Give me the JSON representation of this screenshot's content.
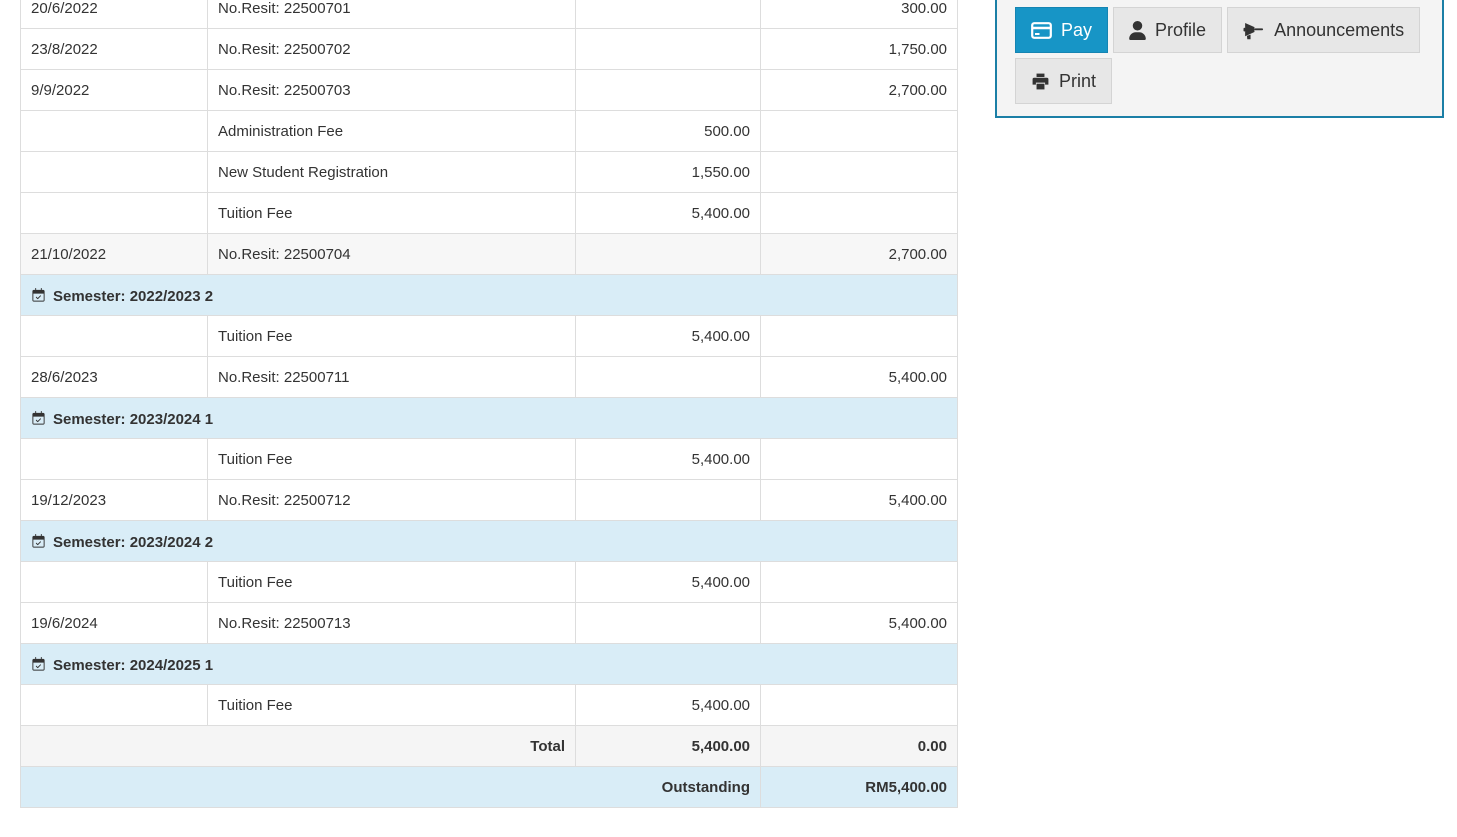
{
  "table": {
    "rows": [
      {
        "type": "entry",
        "date": "20/6/2022",
        "description": "No.Resit: 22500701",
        "debit": "",
        "credit": "300.00",
        "shaded": false
      },
      {
        "type": "entry",
        "date": "23/8/2022",
        "description": "No.Resit: 22500702",
        "debit": "",
        "credit": "1,750.00",
        "shaded": false
      },
      {
        "type": "entry",
        "date": "9/9/2022",
        "description": "No.Resit: 22500703",
        "debit": "",
        "credit": "2,700.00",
        "shaded": false
      },
      {
        "type": "entry",
        "date": "",
        "description": "Administration Fee",
        "debit": "500.00",
        "credit": "",
        "shaded": false
      },
      {
        "type": "entry",
        "date": "",
        "description": "New Student Registration",
        "debit": "1,550.00",
        "credit": "",
        "shaded": false
      },
      {
        "type": "entry",
        "date": "",
        "description": "Tuition Fee",
        "debit": "5,400.00",
        "credit": "",
        "shaded": false
      },
      {
        "type": "entry",
        "date": "21/10/2022",
        "description": "No.Resit: 22500704",
        "debit": "",
        "credit": "2,700.00",
        "shaded": true
      },
      {
        "type": "semester",
        "label": "Semester: 2022/2023 2"
      },
      {
        "type": "entry",
        "date": "",
        "description": "Tuition Fee",
        "debit": "5,400.00",
        "credit": "",
        "shaded": false
      },
      {
        "type": "entry",
        "date": "28/6/2023",
        "description": "No.Resit: 22500711",
        "debit": "",
        "credit": "5,400.00",
        "shaded": false
      },
      {
        "type": "semester",
        "label": "Semester: 2023/2024 1"
      },
      {
        "type": "entry",
        "date": "",
        "description": "Tuition Fee",
        "debit": "5,400.00",
        "credit": "",
        "shaded": false
      },
      {
        "type": "entry",
        "date": "19/12/2023",
        "description": "No.Resit: 22500712",
        "debit": "",
        "credit": "5,400.00",
        "shaded": false
      },
      {
        "type": "semester",
        "label": "Semester: 2023/2024 2"
      },
      {
        "type": "entry",
        "date": "",
        "description": "Tuition Fee",
        "debit": "5,400.00",
        "credit": "",
        "shaded": false
      },
      {
        "type": "entry",
        "date": "19/6/2024",
        "description": "No.Resit: 22500713",
        "debit": "",
        "credit": "5,400.00",
        "shaded": false
      },
      {
        "type": "semester",
        "label": "Semester: 2024/2025 1"
      },
      {
        "type": "entry",
        "date": "",
        "description": "Tuition Fee",
        "debit": "5,400.00",
        "credit": "",
        "shaded": false
      }
    ],
    "total_row": {
      "label": "Total",
      "debit": "5,400.00",
      "credit": "0.00"
    },
    "outstanding_row": {
      "label": "Outstanding",
      "amount": "RM5,400.00"
    },
    "semester_icon": "calendar-check-icon"
  },
  "action_panel": {
    "buttons": [
      {
        "label": "Pay",
        "icon": "credit-card-icon",
        "primary": true
      },
      {
        "label": "Profile",
        "icon": "user-icon",
        "primary": false
      },
      {
        "label": "Announcements",
        "icon": "bullhorn-icon",
        "primary": false
      },
      {
        "label": "Print",
        "icon": "printer-icon",
        "primary": false
      }
    ]
  },
  "colors": {
    "accent_blue": "#1795c6",
    "panel_border": "#1b7fa6",
    "semester_row_bg": "#d9edf7",
    "shaded_row_bg": "#f7f7f7",
    "total_row_bg": "#f5f5f5",
    "table_border": "#dddddd",
    "button_bg": "#e7e7e7",
    "text": "#333333"
  }
}
